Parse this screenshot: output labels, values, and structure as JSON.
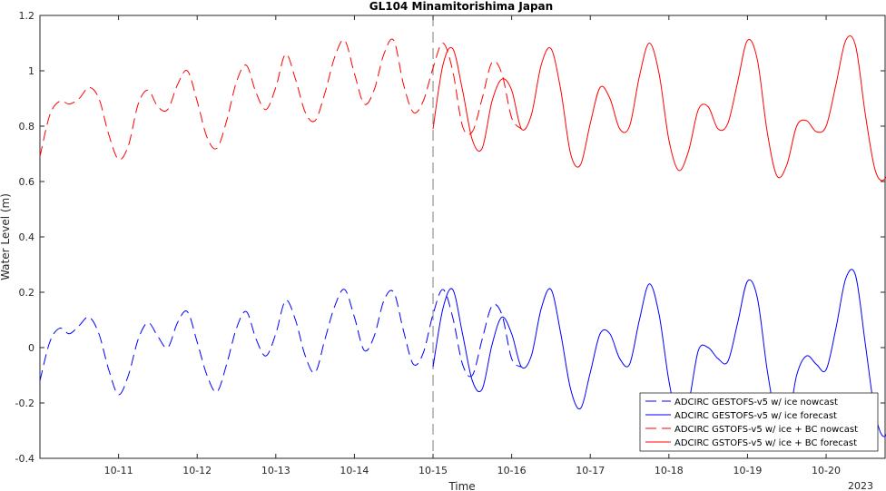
{
  "chart_data": {
    "type": "line",
    "title": "GL104 Minamitorishima Japan",
    "xlabel": "Time",
    "ylabel": "Water Level (m)",
    "year_label": "2023",
    "x_range": [
      "2023-10-10 00:00",
      "2023-10-20 18:00"
    ],
    "ylim": [
      -0.4,
      1.2
    ],
    "yticks": [
      "-0.4",
      "-0.2",
      "0",
      "0.2",
      "0.4",
      "0.6",
      "0.8",
      "1",
      "1.2"
    ],
    "xticks": [
      "10-11",
      "10-12",
      "10-13",
      "10-14",
      "10-15",
      "10-16",
      "10-17",
      "10-18",
      "10-19",
      "10-20"
    ],
    "nowcast_forecast_boundary": "2023-10-15 00:00",
    "grid": false,
    "legend_position": "bottom-right",
    "time_step_hours": 3,
    "series": [
      {
        "name": "ADCIRC GESTOFS-v5 w/ ice nowcast",
        "color": "#0000ff",
        "dash": "dashed",
        "start": "2023-10-10 00:00",
        "values": [
          -0.12,
          0.02,
          0.07,
          0.05,
          0.08,
          0.11,
          0.05,
          -0.08,
          -0.17,
          -0.1,
          0.03,
          0.09,
          0.04,
          0.0,
          0.09,
          0.13,
          0.02,
          -0.1,
          -0.16,
          -0.06,
          0.07,
          0.13,
          0.03,
          -0.03,
          0.05,
          0.17,
          0.1,
          -0.03,
          -0.09,
          0.03,
          0.15,
          0.21,
          0.11,
          -0.01,
          0.04,
          0.17,
          0.2,
          0.06,
          -0.06,
          -0.02,
          0.12,
          0.21,
          0.11,
          -0.06,
          -0.1,
          0.03,
          0.15,
          0.12,
          -0.04,
          -0.07
        ]
      },
      {
        "name": "ADCIRC GESTOFS-v5 w/ ice forecast",
        "color": "#0000ff",
        "dash": "solid",
        "start": "2023-10-15 00:00",
        "values": [
          -0.07,
          0.14,
          0.21,
          0.05,
          -0.12,
          -0.15,
          0.01,
          0.11,
          0.05,
          -0.07,
          -0.03,
          0.14,
          0.21,
          0.05,
          -0.15,
          -0.22,
          -0.09,
          0.05,
          0.05,
          -0.04,
          -0.06,
          0.1,
          0.23,
          0.12,
          -0.12,
          -0.27,
          -0.2,
          -0.01,
          0.0,
          -0.04,
          -0.05,
          0.09,
          0.24,
          0.18,
          -0.08,
          -0.27,
          -0.29,
          -0.1,
          -0.03,
          -0.06,
          -0.08,
          0.07,
          0.25,
          0.26,
          0.01,
          -0.24,
          -0.32,
          -0.19,
          -0.08,
          -0.06,
          -0.06,
          0.09,
          0.27,
          0.29,
          0.05,
          -0.22
        ]
      },
      {
        "name": "ADCIRC GSTOFS-v5 w/ ice + BC nowcast",
        "color": "#ff0000",
        "dash": "dashed",
        "start": "2023-10-10 00:00",
        "values": [
          0.69,
          0.84,
          0.89,
          0.88,
          0.9,
          0.94,
          0.9,
          0.77,
          0.68,
          0.73,
          0.88,
          0.93,
          0.87,
          0.86,
          0.95,
          1.0,
          0.89,
          0.76,
          0.72,
          0.82,
          0.96,
          1.02,
          0.92,
          0.86,
          0.94,
          1.06,
          0.97,
          0.85,
          0.82,
          0.92,
          1.05,
          1.11,
          0.99,
          0.88,
          0.93,
          1.06,
          1.11,
          0.95,
          0.85,
          0.89,
          1.01,
          1.1,
          1.0,
          0.8,
          0.78,
          0.9,
          1.03,
          0.99,
          0.83,
          0.79
        ]
      },
      {
        "name": "ADCIRC GSTOFS-v5 w/ ice + BC forecast",
        "color": "#ff0000",
        "dash": "solid",
        "start": "2023-10-15 00:00",
        "values": [
          0.79,
          1.02,
          1.08,
          0.93,
          0.75,
          0.72,
          0.89,
          0.97,
          0.93,
          0.79,
          0.84,
          1.02,
          1.08,
          0.93,
          0.7,
          0.66,
          0.81,
          0.94,
          0.9,
          0.79,
          0.8,
          0.98,
          1.1,
          0.99,
          0.75,
          0.64,
          0.71,
          0.86,
          0.87,
          0.79,
          0.81,
          0.96,
          1.11,
          1.04,
          0.78,
          0.62,
          0.66,
          0.8,
          0.82,
          0.78,
          0.8,
          0.95,
          1.11,
          1.09,
          0.84,
          0.64,
          0.61,
          0.72,
          0.77,
          0.78,
          0.79,
          0.94,
          1.14,
          1.13,
          0.88,
          0.66
        ]
      }
    ]
  }
}
